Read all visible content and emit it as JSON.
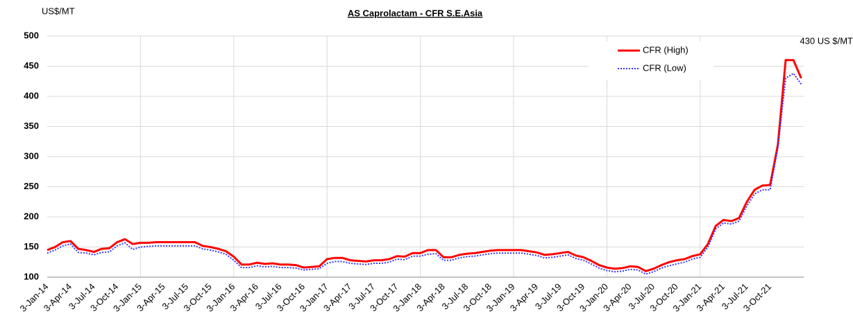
{
  "chart_data": {
    "type": "line",
    "title": "AS Caprolactam - CFR S.E.Asia",
    "y_axis_label": "US$/MT",
    "annotation": "430 US $/MT",
    "categories": [
      "3-Jan-14",
      null,
      null,
      "3-Apr-14",
      null,
      null,
      "3-Jul-14",
      null,
      null,
      "3-Oct-14",
      null,
      null,
      "3-Jan-15",
      null,
      null,
      "3-Apr-15",
      null,
      null,
      "3-Jul-15",
      null,
      null,
      "3-Oct-15",
      null,
      null,
      "3-Jan-16",
      null,
      null,
      "3-Apr-16",
      null,
      null,
      "3-Jul-16",
      null,
      null,
      "3-Oct-16",
      null,
      null,
      "3-Jan-17",
      null,
      null,
      "3-Apr-17",
      null,
      null,
      "3-Jul-17",
      null,
      null,
      "3-Oct-17",
      null,
      null,
      "3-Jan-18",
      null,
      null,
      "3-Apr-18",
      null,
      null,
      "3-Jul-18",
      null,
      null,
      "3-Oct-18",
      null,
      null,
      "3-Jan-19",
      null,
      null,
      "3-Apr-19",
      null,
      null,
      "3-Jul-19",
      null,
      null,
      "3-Oct-19",
      null,
      null,
      "3-Jan-20",
      null,
      null,
      "3-Apr-20",
      null,
      null,
      "3-Jul-20",
      null,
      null,
      "3-Oct-20",
      null,
      null,
      "3-Jan-21",
      null,
      null,
      "3-Apr-21",
      null,
      null,
      "3-Jul-21",
      null,
      null,
      "3-Oct-21",
      null,
      null,
      null,
      null
    ],
    "series": [
      {
        "name": "CFR (High)",
        "color": "#ff0000",
        "style": "solid",
        "values": [
          145,
          150,
          158,
          160,
          147,
          145,
          142,
          147,
          148,
          158,
          163,
          155,
          157,
          157,
          158,
          158,
          158,
          158,
          158,
          158,
          152,
          150,
          147,
          143,
          134,
          121,
          121,
          124,
          122,
          123,
          121,
          121,
          120,
          116,
          117,
          118,
          130,
          132,
          132,
          128,
          127,
          126,
          128,
          128,
          130,
          135,
          134,
          140,
          140,
          145,
          145,
          133,
          133,
          137,
          139,
          140,
          142,
          144,
          145,
          145,
          145,
          145,
          143,
          141,
          137,
          138,
          140,
          142,
          136,
          133,
          127,
          120,
          116,
          114,
          115,
          118,
          117,
          110,
          114,
          120,
          125,
          128,
          130,
          135,
          138,
          155,
          185,
          195,
          193,
          198,
          225,
          245,
          252,
          253,
          320,
          460,
          460,
          430
        ]
      },
      {
        "name": "CFR (Low)",
        "color": "#3333ff",
        "style": "dotted",
        "values": [
          140,
          145,
          152,
          155,
          141,
          140,
          137,
          141,
          142,
          152,
          157,
          146,
          150,
          151,
          152,
          152,
          152,
          152,
          152,
          152,
          147,
          145,
          142,
          138,
          128,
          116,
          116,
          119,
          117,
          118,
          116,
          116,
          115,
          112,
          113,
          114,
          123,
          126,
          126,
          123,
          122,
          121,
          123,
          123,
          125,
          130,
          129,
          135,
          135,
          138,
          139,
          128,
          128,
          132,
          134,
          135,
          137,
          139,
          140,
          140,
          140,
          140,
          138,
          136,
          132,
          133,
          135,
          137,
          131,
          128,
          122,
          115,
          111,
          109,
          110,
          113,
          112,
          105,
          109,
          115,
          119,
          122,
          125,
          130,
          133,
          150,
          180,
          190,
          188,
          193,
          218,
          238,
          245,
          245,
          315,
          430,
          438,
          420
        ]
      }
    ],
    "ylim": [
      100,
      500
    ],
    "yticks": [
      100,
      150,
      200,
      250,
      300,
      350,
      400,
      450,
      500
    ],
    "grid": true,
    "legend": "top-right"
  }
}
